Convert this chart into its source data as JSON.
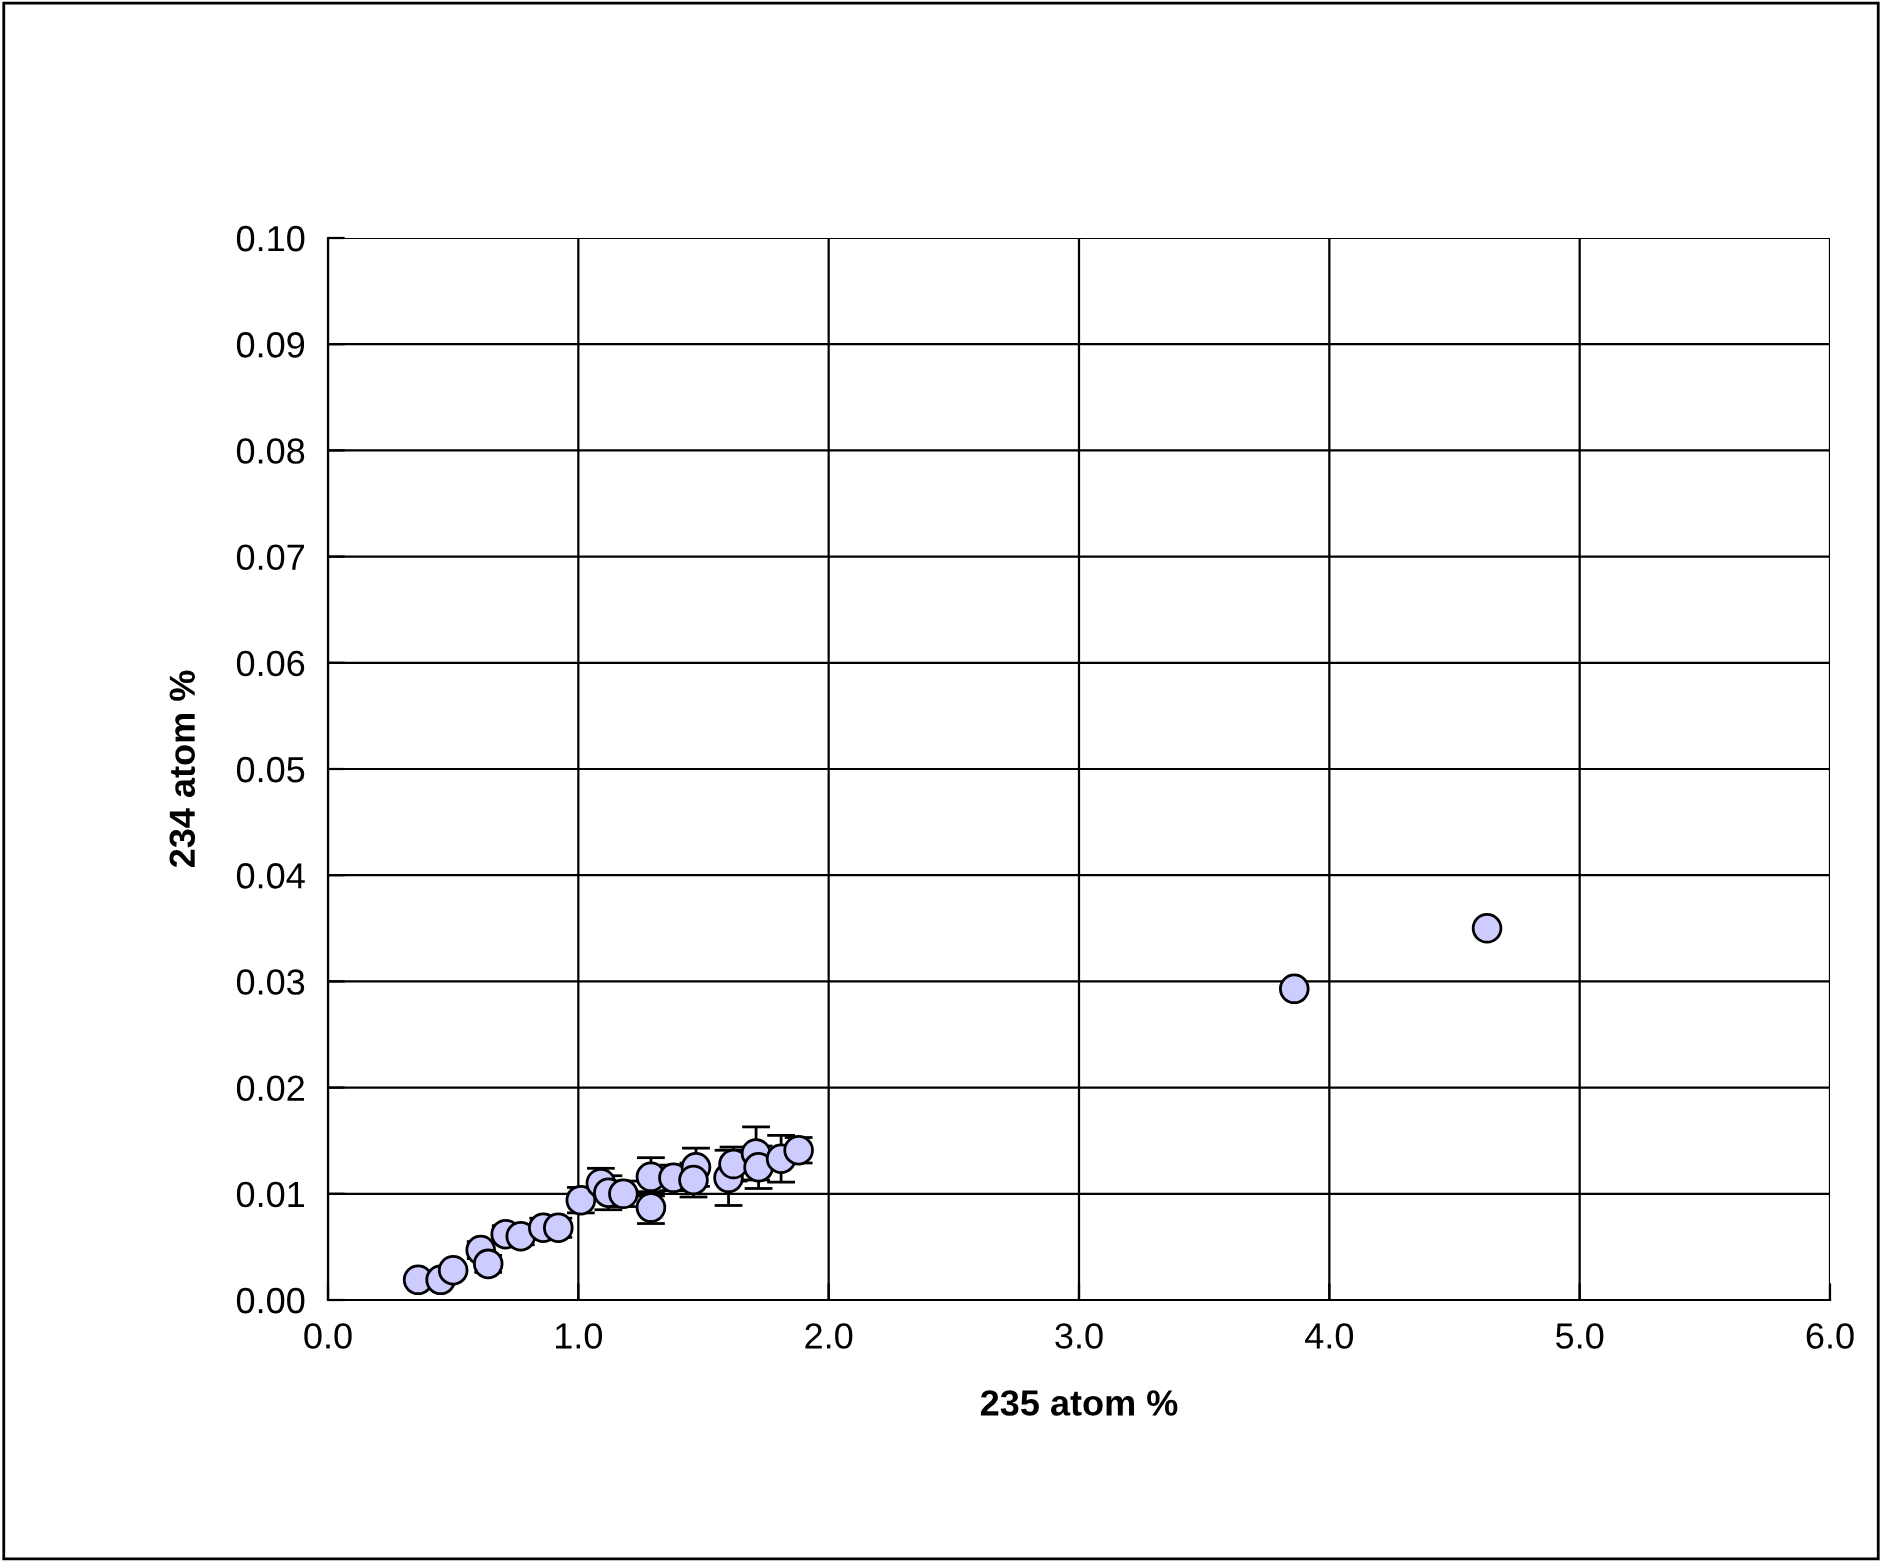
{
  "chart_data": {
    "type": "scatter",
    "xlabel": "235 atom %",
    "ylabel": "234 atom %",
    "xlim": [
      0,
      6
    ],
    "ylim": [
      0,
      0.1
    ],
    "xticks": [
      {
        "value": 0,
        "label": "0.0"
      },
      {
        "value": 1,
        "label": "1.0"
      },
      {
        "value": 2,
        "label": "2.0"
      },
      {
        "value": 3,
        "label": "3.0"
      },
      {
        "value": 4,
        "label": "4.0"
      },
      {
        "value": 5,
        "label": "5.0"
      },
      {
        "value": 6,
        "label": "6.0"
      }
    ],
    "yticks": [
      {
        "value": 0,
        "label": "0.00"
      },
      {
        "value": 0.01,
        "label": "0.01"
      },
      {
        "value": 0.02,
        "label": "0.02"
      },
      {
        "value": 0.03,
        "label": "0.03"
      },
      {
        "value": 0.04,
        "label": "0.04"
      },
      {
        "value": 0.05,
        "label": "0.05"
      },
      {
        "value": 0.06,
        "label": "0.06"
      },
      {
        "value": 0.07,
        "label": "0.07"
      },
      {
        "value": 0.08,
        "label": "0.08"
      },
      {
        "value": 0.09,
        "label": "0.09"
      },
      {
        "value": 0.1,
        "label": "0.10"
      }
    ],
    "grid": true,
    "marker": "circle",
    "series": [
      {
        "color": "#ccccff",
        "x": [
          0.36,
          0.45,
          0.5,
          0.61,
          0.64,
          0.71,
          0.77,
          0.86,
          0.92,
          1.01,
          1.09,
          1.12,
          1.18,
          1.29,
          1.29,
          1.38,
          1.47,
          1.46,
          1.6,
          1.62,
          1.71,
          1.72,
          1.81,
          1.88,
          3.86,
          4.63
        ],
        "values": [
          0.0019,
          0.0019,
          0.0028,
          0.0047,
          0.0034,
          0.0062,
          0.006,
          0.0068,
          0.0068,
          0.0094,
          0.011,
          0.0101,
          0.01,
          0.0116,
          0.0087,
          0.0115,
          0.0125,
          0.0113,
          0.0115,
          0.0128,
          0.0138,
          0.0125,
          0.0133,
          0.0141,
          0.0293,
          0.035
        ],
        "errors": [
          null,
          null,
          null,
          0.0008,
          0.0008,
          0.0008,
          0.0008,
          0.0009,
          0.0009,
          0.0012,
          0.0014,
          0.0016,
          0.0012,
          0.0018,
          0.0015,
          0.0012,
          0.0018,
          0.0016,
          0.0026,
          0.0016,
          0.0025,
          0.002,
          0.0022,
          0.0012,
          null,
          null
        ]
      }
    ]
  }
}
